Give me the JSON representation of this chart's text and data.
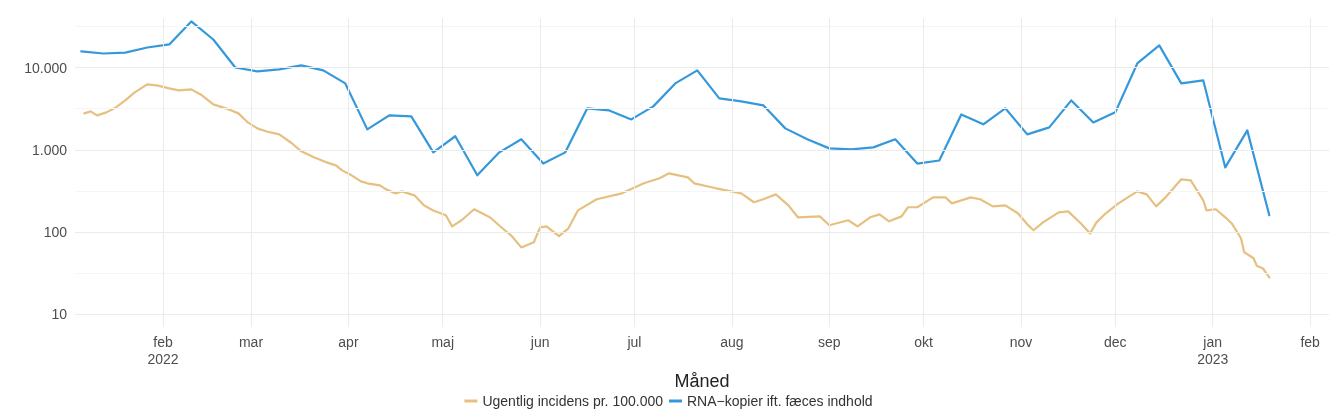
{
  "chart_data": {
    "type": "line",
    "xlabel": "Måned",
    "legend": "bottom",
    "grid": true,
    "log": "y",
    "marker": "none",
    "line_style": "solid",
    "xlim": [
      "2022-01-04",
      "2023-02-07"
    ],
    "xticks": [
      {
        "value": "2022-02-01",
        "label": "feb\n2022"
      },
      {
        "value": "2022-03-01",
        "label": "mar"
      },
      {
        "value": "2022-04-01",
        "label": "apr"
      },
      {
        "value": "2022-05-01",
        "label": "maj"
      },
      {
        "value": "2022-06-01",
        "label": "jun"
      },
      {
        "value": "2022-07-01",
        "label": "jul"
      },
      {
        "value": "2022-08-01",
        "label": "aug"
      },
      {
        "value": "2022-09-01",
        "label": "sep"
      },
      {
        "value": "2022-10-01",
        "label": "okt"
      },
      {
        "value": "2022-11-01",
        "label": "nov"
      },
      {
        "value": "2022-12-01",
        "label": "dec"
      },
      {
        "value": "2023-01-01",
        "label": "jan\n2023"
      },
      {
        "value": "2023-02-01",
        "label": "feb"
      }
    ],
    "ylim": [
      7,
      40000
    ],
    "yticks": [
      10,
      {
        "value": 31.6,
        "label": null
      },
      100,
      {
        "value": 316,
        "label": null
      },
      {
        "value": 1000,
        "label": "1.000"
      },
      {
        "value": 3160,
        "label": null
      },
      {
        "value": 10000,
        "label": "10.000"
      },
      {
        "value": 31600,
        "label": null
      }
    ],
    "series": [
      {
        "name": "Ugentlig incidens pr. 100.000",
        "color": "#e6c080",
        "x": [
          "2022-01-07",
          "2022-01-09",
          "2022-01-11",
          "2022-01-14",
          "2022-01-17",
          "2022-01-20",
          "2022-01-23",
          "2022-01-27",
          "2022-01-30",
          "2022-02-03",
          "2022-02-06",
          "2022-02-10",
          "2022-02-13",
          "2022-02-17",
          "2022-02-21",
          "2022-02-25",
          "2022-02-28",
          "2022-03-03",
          "2022-03-06",
          "2022-03-10",
          "2022-03-14",
          "2022-03-17",
          "2022-03-21",
          "2022-03-25",
          "2022-03-28",
          "2022-03-30",
          "2022-04-02",
          "2022-04-05",
          "2022-04-07",
          "2022-04-11",
          "2022-04-13",
          "2022-04-16",
          "2022-04-18",
          "2022-04-22",
          "2022-04-25",
          "2022-04-28",
          "2022-05-02",
          "2022-05-04",
          "2022-05-07",
          "2022-05-11",
          "2022-05-16",
          "2022-05-20",
          "2022-05-23",
          "2022-05-26",
          "2022-05-30",
          "2022-06-01",
          "2022-06-03",
          "2022-06-07",
          "2022-06-10",
          "2022-06-13",
          "2022-06-19",
          "2022-06-27",
          "2022-07-04",
          "2022-07-09",
          "2022-07-12",
          "2022-07-18",
          "2022-07-20",
          "2022-07-27",
          "2022-08-04",
          "2022-08-08",
          "2022-08-11",
          "2022-08-15",
          "2022-08-19",
          "2022-08-22",
          "2022-08-29",
          "2022-09-01",
          "2022-09-07",
          "2022-09-10",
          "2022-09-14",
          "2022-09-17",
          "2022-09-20",
          "2022-09-24",
          "2022-09-26",
          "2022-09-29",
          "2022-10-04",
          "2022-10-08",
          "2022-10-10",
          "2022-10-16",
          "2022-10-19",
          "2022-10-23",
          "2022-10-27",
          "2022-10-31",
          "2022-11-03",
          "2022-11-05",
          "2022-11-08",
          "2022-11-13",
          "2022-11-16",
          "2022-11-20",
          "2022-11-23",
          "2022-11-25",
          "2022-11-28",
          "2022-12-02",
          "2022-12-08",
          "2022-12-11",
          "2022-12-14",
          "2022-12-17",
          "2022-12-22",
          "2022-12-25",
          "2022-12-29",
          "2022-12-30",
          "2023-01-02",
          "2023-01-05",
          "2023-01-07",
          "2023-01-10",
          "2023-01-11",
          "2023-01-14",
          "2023-01-15",
          "2023-01-17",
          "2023-01-19"
        ],
        "values": [
          2770,
          2930,
          2620,
          2850,
          3270,
          3980,
          4980,
          6230,
          6060,
          5570,
          5270,
          5420,
          4710,
          3560,
          3190,
          2770,
          2150,
          1820,
          1670,
          1540,
          1200,
          957,
          809,
          703,
          646,
          562,
          489,
          413,
          391,
          369,
          330,
          295,
          312,
          279,
          211,
          183,
          160,
          117,
          139,
          189,
          151,
          111,
          89,
          65,
          75,
          114,
          117,
          89,
          111,
          183,
          250,
          295,
          391,
          450,
          517,
          462,
          391,
          340,
          295,
          230,
          250,
          287,
          211,
          151,
          155,
          121,
          139,
          117,
          151,
          164,
          135,
          155,
          200,
          200,
          264,
          264,
          223,
          264,
          250,
          205,
          211,
          169,
          124,
          105,
          131,
          173,
          178,
          128,
          96,
          131,
          169,
          223,
          312,
          287,
          205,
          264,
          437,
          424,
          243,
          183,
          189,
          151,
          128,
          84,
          57,
          48,
          39,
          36,
          28
        ]
      },
      {
        "name": "RNA−kopier ift. fæces indhold",
        "color": "#3498db",
        "x": [
          "2022-01-06",
          "2022-01-13",
          "2022-01-20",
          "2022-01-27",
          "2022-02-03",
          "2022-02-10",
          "2022-02-17",
          "2022-02-24",
          "2022-03-03",
          "2022-03-10",
          "2022-03-17",
          "2022-03-24",
          "2022-03-31",
          "2022-04-07",
          "2022-04-14",
          "2022-04-21",
          "2022-04-28",
          "2022-05-05",
          "2022-05-12",
          "2022-05-19",
          "2022-05-26",
          "2022-06-02",
          "2022-06-09",
          "2022-06-16",
          "2022-06-23",
          "2022-06-30",
          "2022-07-07",
          "2022-07-14",
          "2022-07-21",
          "2022-07-28",
          "2022-08-04",
          "2022-08-11",
          "2022-08-18",
          "2022-08-25",
          "2022-09-01",
          "2022-09-08",
          "2022-09-15",
          "2022-09-22",
          "2022-09-29",
          "2022-10-06",
          "2022-10-13",
          "2022-10-20",
          "2022-10-27",
          "2022-11-03",
          "2022-11-10",
          "2022-11-17",
          "2022-11-24",
          "2022-12-01",
          "2022-12-08",
          "2022-12-15",
          "2022-12-22",
          "2022-12-29",
          "2023-01-05",
          "2023-01-12",
          "2023-01-19"
        ],
        "values": [
          15700,
          14800,
          15200,
          17500,
          19100,
          36300,
          21900,
          10000,
          8970,
          9480,
          10600,
          9220,
          6410,
          1770,
          2620,
          2550,
          930,
          1460,
          490,
          930,
          1340,
          680,
          930,
          3190,
          3010,
          2340,
          3370,
          6410,
          9220,
          4210,
          3870,
          3470,
          1820,
          1340,
          1040,
          1010,
          1070,
          1340,
          680,
          740,
          2690,
          2040,
          3190,
          1540,
          1870,
          3980,
          2150,
          2850,
          11200,
          18600,
          6410,
          6970,
          610,
          1720,
          160
        ]
      }
    ]
  }
}
